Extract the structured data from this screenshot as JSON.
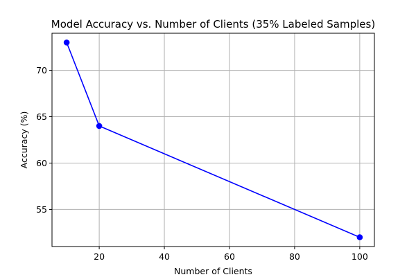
{
  "chart_data": {
    "type": "line",
    "title": "Model Accuracy vs. Number of Clients (35% Labeled Samples)",
    "xlabel": "Number of Clients",
    "ylabel": "Accuracy (%)",
    "x": [
      10,
      20,
      100
    ],
    "series": [
      {
        "values": [
          73,
          64,
          52
        ]
      }
    ],
    "xlim": [
      5.5,
      104.5
    ],
    "ylim": [
      51.0,
      74.0
    ],
    "xticks": [
      20,
      40,
      60,
      80,
      100
    ],
    "yticks": [
      55,
      60,
      65,
      70
    ],
    "grid": true,
    "colors": {
      "line": "#0000ff",
      "marker": "#0000ff"
    }
  }
}
